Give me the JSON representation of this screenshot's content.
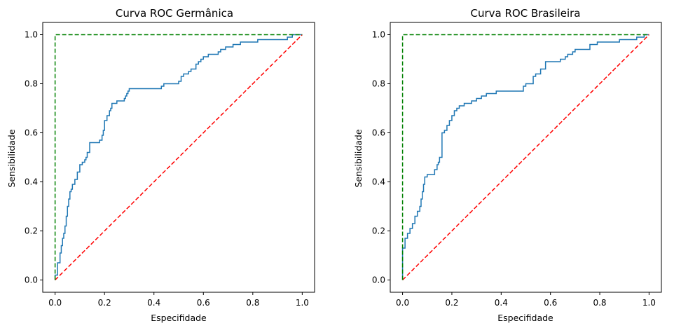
{
  "colors": {
    "roc": "#1f77b4",
    "random": "#ff0000",
    "perfect": "#008000",
    "axes": "#000000"
  },
  "chart_data": [
    {
      "type": "line",
      "title": "Curva ROC Germânica",
      "xlabel": "Especifidade",
      "ylabel": "Sensibilidade",
      "xlim": [
        -0.05,
        1.05
      ],
      "ylim": [
        -0.05,
        1.05
      ],
      "xticks": [
        "0.0",
        "0.2",
        "0.4",
        "0.6",
        "0.8",
        "1.0"
      ],
      "yticks": [
        "0.0",
        "0.2",
        "0.4",
        "0.6",
        "0.8",
        "1.0"
      ],
      "grid": false,
      "series": [
        {
          "style": "solid",
          "color": "#1f77b4",
          "x": [
            0.0,
            0.0,
            0.01,
            0.01,
            0.02,
            0.02,
            0.025,
            0.025,
            0.03,
            0.03,
            0.035,
            0.035,
            0.04,
            0.04,
            0.045,
            0.045,
            0.05,
            0.05,
            0.055,
            0.055,
            0.06,
            0.06,
            0.065,
            0.065,
            0.07,
            0.07,
            0.08,
            0.08,
            0.09,
            0.09,
            0.1,
            0.1,
            0.11,
            0.11,
            0.12,
            0.12,
            0.125,
            0.125,
            0.13,
            0.13,
            0.14,
            0.14,
            0.18,
            0.18,
            0.19,
            0.19,
            0.195,
            0.195,
            0.2,
            0.2,
            0.21,
            0.21,
            0.22,
            0.22,
            0.225,
            0.225,
            0.23,
            0.23,
            0.25,
            0.25,
            0.28,
            0.28,
            0.285,
            0.285,
            0.29,
            0.29,
            0.295,
            0.295,
            0.3,
            0.3,
            0.43,
            0.43,
            0.44,
            0.44,
            0.5,
            0.5,
            0.51,
            0.51,
            0.52,
            0.52,
            0.54,
            0.54,
            0.55,
            0.55,
            0.57,
            0.57,
            0.58,
            0.58,
            0.59,
            0.59,
            0.6,
            0.6,
            0.62,
            0.62,
            0.66,
            0.66,
            0.67,
            0.67,
            0.69,
            0.69,
            0.72,
            0.72,
            0.75,
            0.75,
            0.82,
            0.82,
            0.94,
            0.94,
            0.96,
            0.96,
            1.0
          ],
          "y": [
            0.0,
            0.02,
            0.02,
            0.07,
            0.07,
            0.11,
            0.11,
            0.14,
            0.14,
            0.17,
            0.17,
            0.19,
            0.19,
            0.22,
            0.22,
            0.26,
            0.26,
            0.3,
            0.3,
            0.33,
            0.33,
            0.36,
            0.36,
            0.37,
            0.37,
            0.39,
            0.39,
            0.41,
            0.41,
            0.44,
            0.44,
            0.47,
            0.47,
            0.48,
            0.48,
            0.49,
            0.49,
            0.5,
            0.5,
            0.52,
            0.52,
            0.56,
            0.56,
            0.57,
            0.57,
            0.59,
            0.59,
            0.61,
            0.61,
            0.65,
            0.65,
            0.67,
            0.67,
            0.69,
            0.69,
            0.7,
            0.7,
            0.72,
            0.72,
            0.73,
            0.73,
            0.74,
            0.74,
            0.75,
            0.75,
            0.76,
            0.76,
            0.77,
            0.77,
            0.78,
            0.78,
            0.79,
            0.79,
            0.8,
            0.8,
            0.81,
            0.81,
            0.83,
            0.83,
            0.84,
            0.84,
            0.85,
            0.85,
            0.86,
            0.86,
            0.88,
            0.88,
            0.89,
            0.89,
            0.9,
            0.9,
            0.91,
            0.91,
            0.92,
            0.92,
            0.93,
            0.93,
            0.94,
            0.94,
            0.95,
            0.95,
            0.96,
            0.96,
            0.97,
            0.97,
            0.98,
            0.98,
            0.99,
            0.99,
            1.0,
            1.0
          ]
        },
        {
          "style": "dashed",
          "color": "#ff0000",
          "x": [
            0.0,
            1.0
          ],
          "y": [
            0.0,
            1.0
          ]
        },
        {
          "style": "dashed",
          "color": "#008000",
          "x": [
            0.0,
            0.0,
            1.0
          ],
          "y": [
            0.0,
            1.0,
            1.0
          ]
        }
      ]
    },
    {
      "type": "line",
      "title": "Curva ROC Brasileira",
      "xlabel": "Especifidade",
      "ylabel": "Sensibilidade",
      "xlim": [
        -0.05,
        1.05
      ],
      "ylim": [
        -0.05,
        1.05
      ],
      "xticks": [
        "0.0",
        "0.2",
        "0.4",
        "0.6",
        "0.8",
        "1.0"
      ],
      "yticks": [
        "0.0",
        "0.2",
        "0.4",
        "0.6",
        "0.8",
        "1.0"
      ],
      "grid": false,
      "series": [
        {
          "style": "solid",
          "color": "#1f77b4",
          "x": [
            0.0,
            0.0,
            0.01,
            0.01,
            0.02,
            0.02,
            0.03,
            0.03,
            0.04,
            0.04,
            0.05,
            0.05,
            0.06,
            0.06,
            0.07,
            0.07,
            0.075,
            0.075,
            0.08,
            0.08,
            0.085,
            0.085,
            0.09,
            0.09,
            0.1,
            0.1,
            0.13,
            0.13,
            0.14,
            0.14,
            0.145,
            0.145,
            0.15,
            0.15,
            0.16,
            0.16,
            0.17,
            0.17,
            0.18,
            0.18,
            0.19,
            0.19,
            0.2,
            0.2,
            0.21,
            0.21,
            0.22,
            0.22,
            0.23,
            0.23,
            0.24,
            0.24,
            0.25,
            0.25,
            0.28,
            0.28,
            0.3,
            0.3,
            0.32,
            0.32,
            0.34,
            0.34,
            0.38,
            0.38,
            0.49,
            0.49,
            0.5,
            0.5,
            0.53,
            0.53,
            0.54,
            0.54,
            0.56,
            0.56,
            0.58,
            0.58,
            0.64,
            0.64,
            0.66,
            0.66,
            0.67,
            0.67,
            0.69,
            0.69,
            0.7,
            0.7,
            0.72,
            0.72,
            0.76,
            0.76,
            0.79,
            0.79,
            0.88,
            0.88,
            0.95,
            0.95,
            0.98,
            0.98,
            1.0
          ],
          "y": [
            0.0,
            0.13,
            0.13,
            0.17,
            0.17,
            0.19,
            0.19,
            0.21,
            0.21,
            0.23,
            0.23,
            0.26,
            0.26,
            0.28,
            0.28,
            0.3,
            0.3,
            0.33,
            0.33,
            0.36,
            0.36,
            0.39,
            0.39,
            0.42,
            0.42,
            0.43,
            0.43,
            0.45,
            0.45,
            0.47,
            0.47,
            0.48,
            0.48,
            0.5,
            0.5,
            0.6,
            0.6,
            0.61,
            0.61,
            0.63,
            0.63,
            0.65,
            0.65,
            0.67,
            0.67,
            0.69,
            0.69,
            0.7,
            0.7,
            0.71,
            0.71,
            0.71,
            0.71,
            0.72,
            0.72,
            0.73,
            0.73,
            0.74,
            0.74,
            0.75,
            0.75,
            0.76,
            0.76,
            0.77,
            0.77,
            0.79,
            0.79,
            0.8,
            0.8,
            0.83,
            0.83,
            0.84,
            0.84,
            0.86,
            0.86,
            0.89,
            0.89,
            0.9,
            0.9,
            0.91,
            0.91,
            0.92,
            0.92,
            0.93,
            0.93,
            0.94,
            0.94,
            0.94,
            0.94,
            0.96,
            0.96,
            0.97,
            0.97,
            0.98,
            0.98,
            0.99,
            0.99,
            1.0,
            1.0
          ]
        },
        {
          "style": "dashed",
          "color": "#ff0000",
          "x": [
            0.0,
            1.0
          ],
          "y": [
            0.0,
            1.0
          ]
        },
        {
          "style": "dashed",
          "color": "#008000",
          "x": [
            0.0,
            0.0,
            1.0
          ],
          "y": [
            0.0,
            1.0,
            1.0
          ]
        }
      ]
    }
  ]
}
